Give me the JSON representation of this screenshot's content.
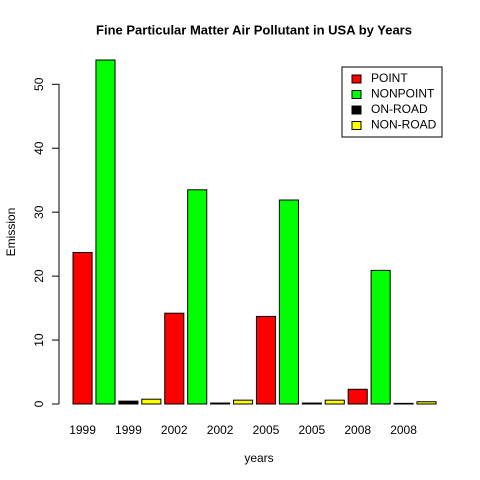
{
  "chart_data": {
    "type": "bar",
    "title": "Fine Particular Matter Air Pollutant in USA by Years",
    "x_label": "years",
    "y_label": "Emission",
    "categories": [
      "1999",
      null,
      "1999",
      null,
      "2002",
      null,
      "2002",
      null,
      "2005",
      null,
      "2005",
      null,
      "2008",
      null,
      "2008",
      null
    ],
    "series": [
      {
        "name": "POINT",
        "color": "#ff0000",
        "values": [
          23.7,
          null,
          null,
          null,
          14.2,
          null,
          null,
          null,
          13.7,
          null,
          null,
          null,
          2.3,
          null,
          null,
          null
        ]
      },
      {
        "name": "NONPOINT",
        "color": "#00ff00",
        "values": [
          null,
          53.8,
          null,
          null,
          null,
          33.5,
          null,
          null,
          null,
          31.9,
          null,
          null,
          null,
          20.9,
          null,
          null
        ]
      },
      {
        "name": "ON-ROAD",
        "color": "#000000",
        "values": [
          null,
          null,
          0.45,
          null,
          null,
          null,
          0.15,
          null,
          null,
          null,
          0.15,
          null,
          null,
          null,
          0.1,
          null
        ]
      },
      {
        "name": "NON-ROAD",
        "color": "#ffff00",
        "values": [
          null,
          null,
          null,
          0.75,
          null,
          null,
          null,
          0.6,
          null,
          null,
          null,
          0.6,
          null,
          null,
          null,
          0.35
        ]
      }
    ],
    "ylim": [
      0,
      53.8
    ],
    "yticks": [
      0,
      10,
      20,
      30,
      40,
      50
    ],
    "legend": "topright"
  }
}
